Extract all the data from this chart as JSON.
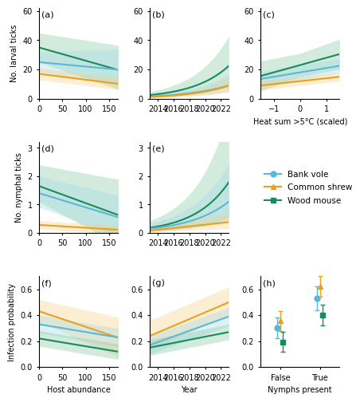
{
  "colors": {
    "bank_vole": "#5bb8d4",
    "common_shrew": "#e8a020",
    "wood_mouse": "#1a8a5a",
    "bank_vole_fill": "#a0d8e8",
    "common_shrew_fill": "#f5d080",
    "wood_mouse_fill": "#80c8a0"
  },
  "panel_labels": {
    "00": "(a)",
    "01": "(b)",
    "02": "(c)",
    "10": "(d)",
    "11": "(e)",
    "20": "(f)",
    "21": "(g)",
    "22": "(h)"
  },
  "legend_labels": [
    "Bank vole",
    "Common shrew",
    "Wood mouse"
  ],
  "row1_ylabel": "No. larval ticks",
  "row2_ylabel": "No. nymphal ticks",
  "row3_ylabel": "Infection probability",
  "ax_c_xlabel": "Heat sum >5°C (scaled)",
  "ax_f_xlabel": "Host abundance",
  "ax_g_xlabel": "Year",
  "ax_h_xlabel": "Nymphs present",
  "panel_h_xticks": [
    "False",
    "True"
  ]
}
